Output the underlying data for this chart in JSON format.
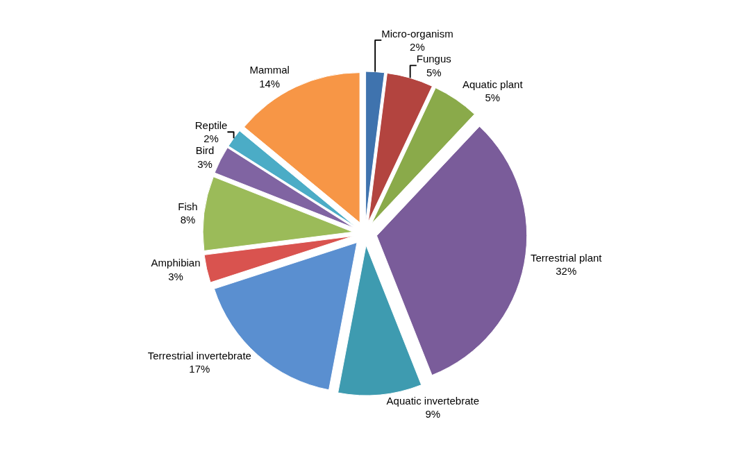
{
  "chart_data": {
    "type": "pie",
    "categories": [
      "Micro-organism",
      "Fungus",
      "Aquatic plant",
      "Terrestrial plant",
      "Aquatic invertebrate",
      "Terrestrial invertebrate",
      "Amphibian",
      "Fish",
      "Bird",
      "Reptile",
      "Mammal"
    ],
    "values": [
      2,
      5,
      5,
      32,
      9,
      17,
      3,
      8,
      3,
      2,
      14
    ],
    "value_labels": [
      "2%",
      "5%",
      "5%",
      "32%",
      "9%",
      "17%",
      "3%",
      "8%",
      "3%",
      "2%",
      "14%"
    ],
    "colors": [
      "#3f73ae",
      "#b3443f",
      "#8aaa4a",
      "#7a5c9a",
      "#3e9bb0",
      "#5a8fd0",
      "#d9534f",
      "#9bbb59",
      "#8064a2",
      "#4bacc6",
      "#f79646"
    ],
    "legend": false
  }
}
